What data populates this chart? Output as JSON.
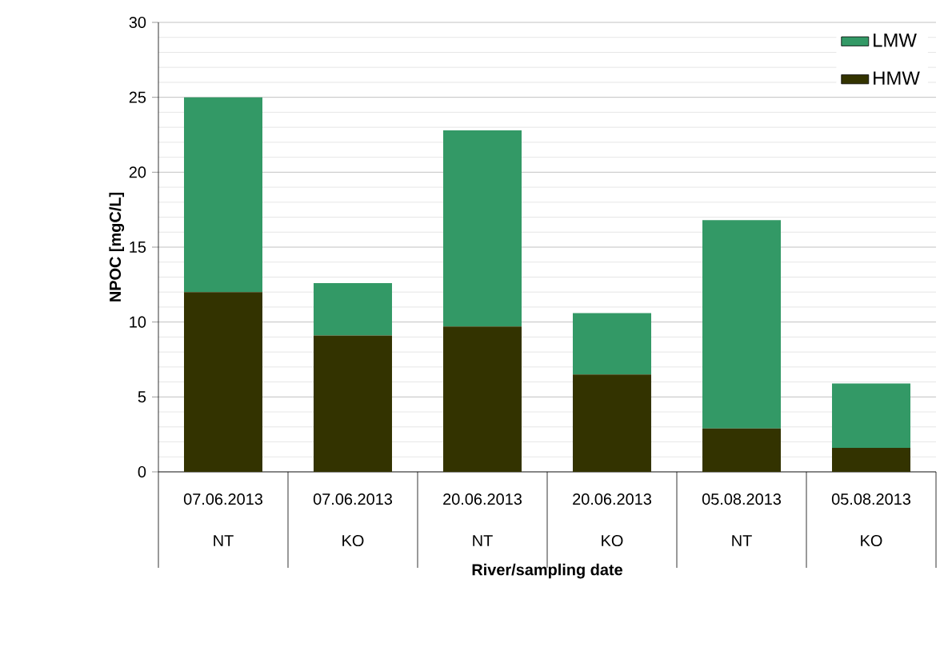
{
  "chart_data": {
    "type": "bar",
    "stacked": true,
    "categories": [
      "07.06.2013",
      "07.06.2013",
      "20.06.2013",
      "20.06.2013",
      "05.08.2013",
      "05.08.2013"
    ],
    "annotations": [
      "NT",
      "KO",
      "NT",
      "KO",
      "NT",
      "KO"
    ],
    "xlabel": "River/sampling date",
    "ylabel": "NPOC [mgC/L]",
    "series": [
      {
        "name": "HMW",
        "color": "#333300",
        "values": [
          12,
          9.1,
          9.7,
          6.5,
          2.9,
          1.6
        ]
      },
      {
        "name": "LMW",
        "color": "#339966",
        "values": [
          13,
          3.5,
          13.1,
          4.1,
          13.9,
          4.3
        ]
      }
    ],
    "ylim": [
      0,
      30
    ],
    "yticks": [
      0,
      5,
      10,
      15,
      20,
      25,
      30
    ],
    "grid": "y",
    "legend": "top right"
  }
}
